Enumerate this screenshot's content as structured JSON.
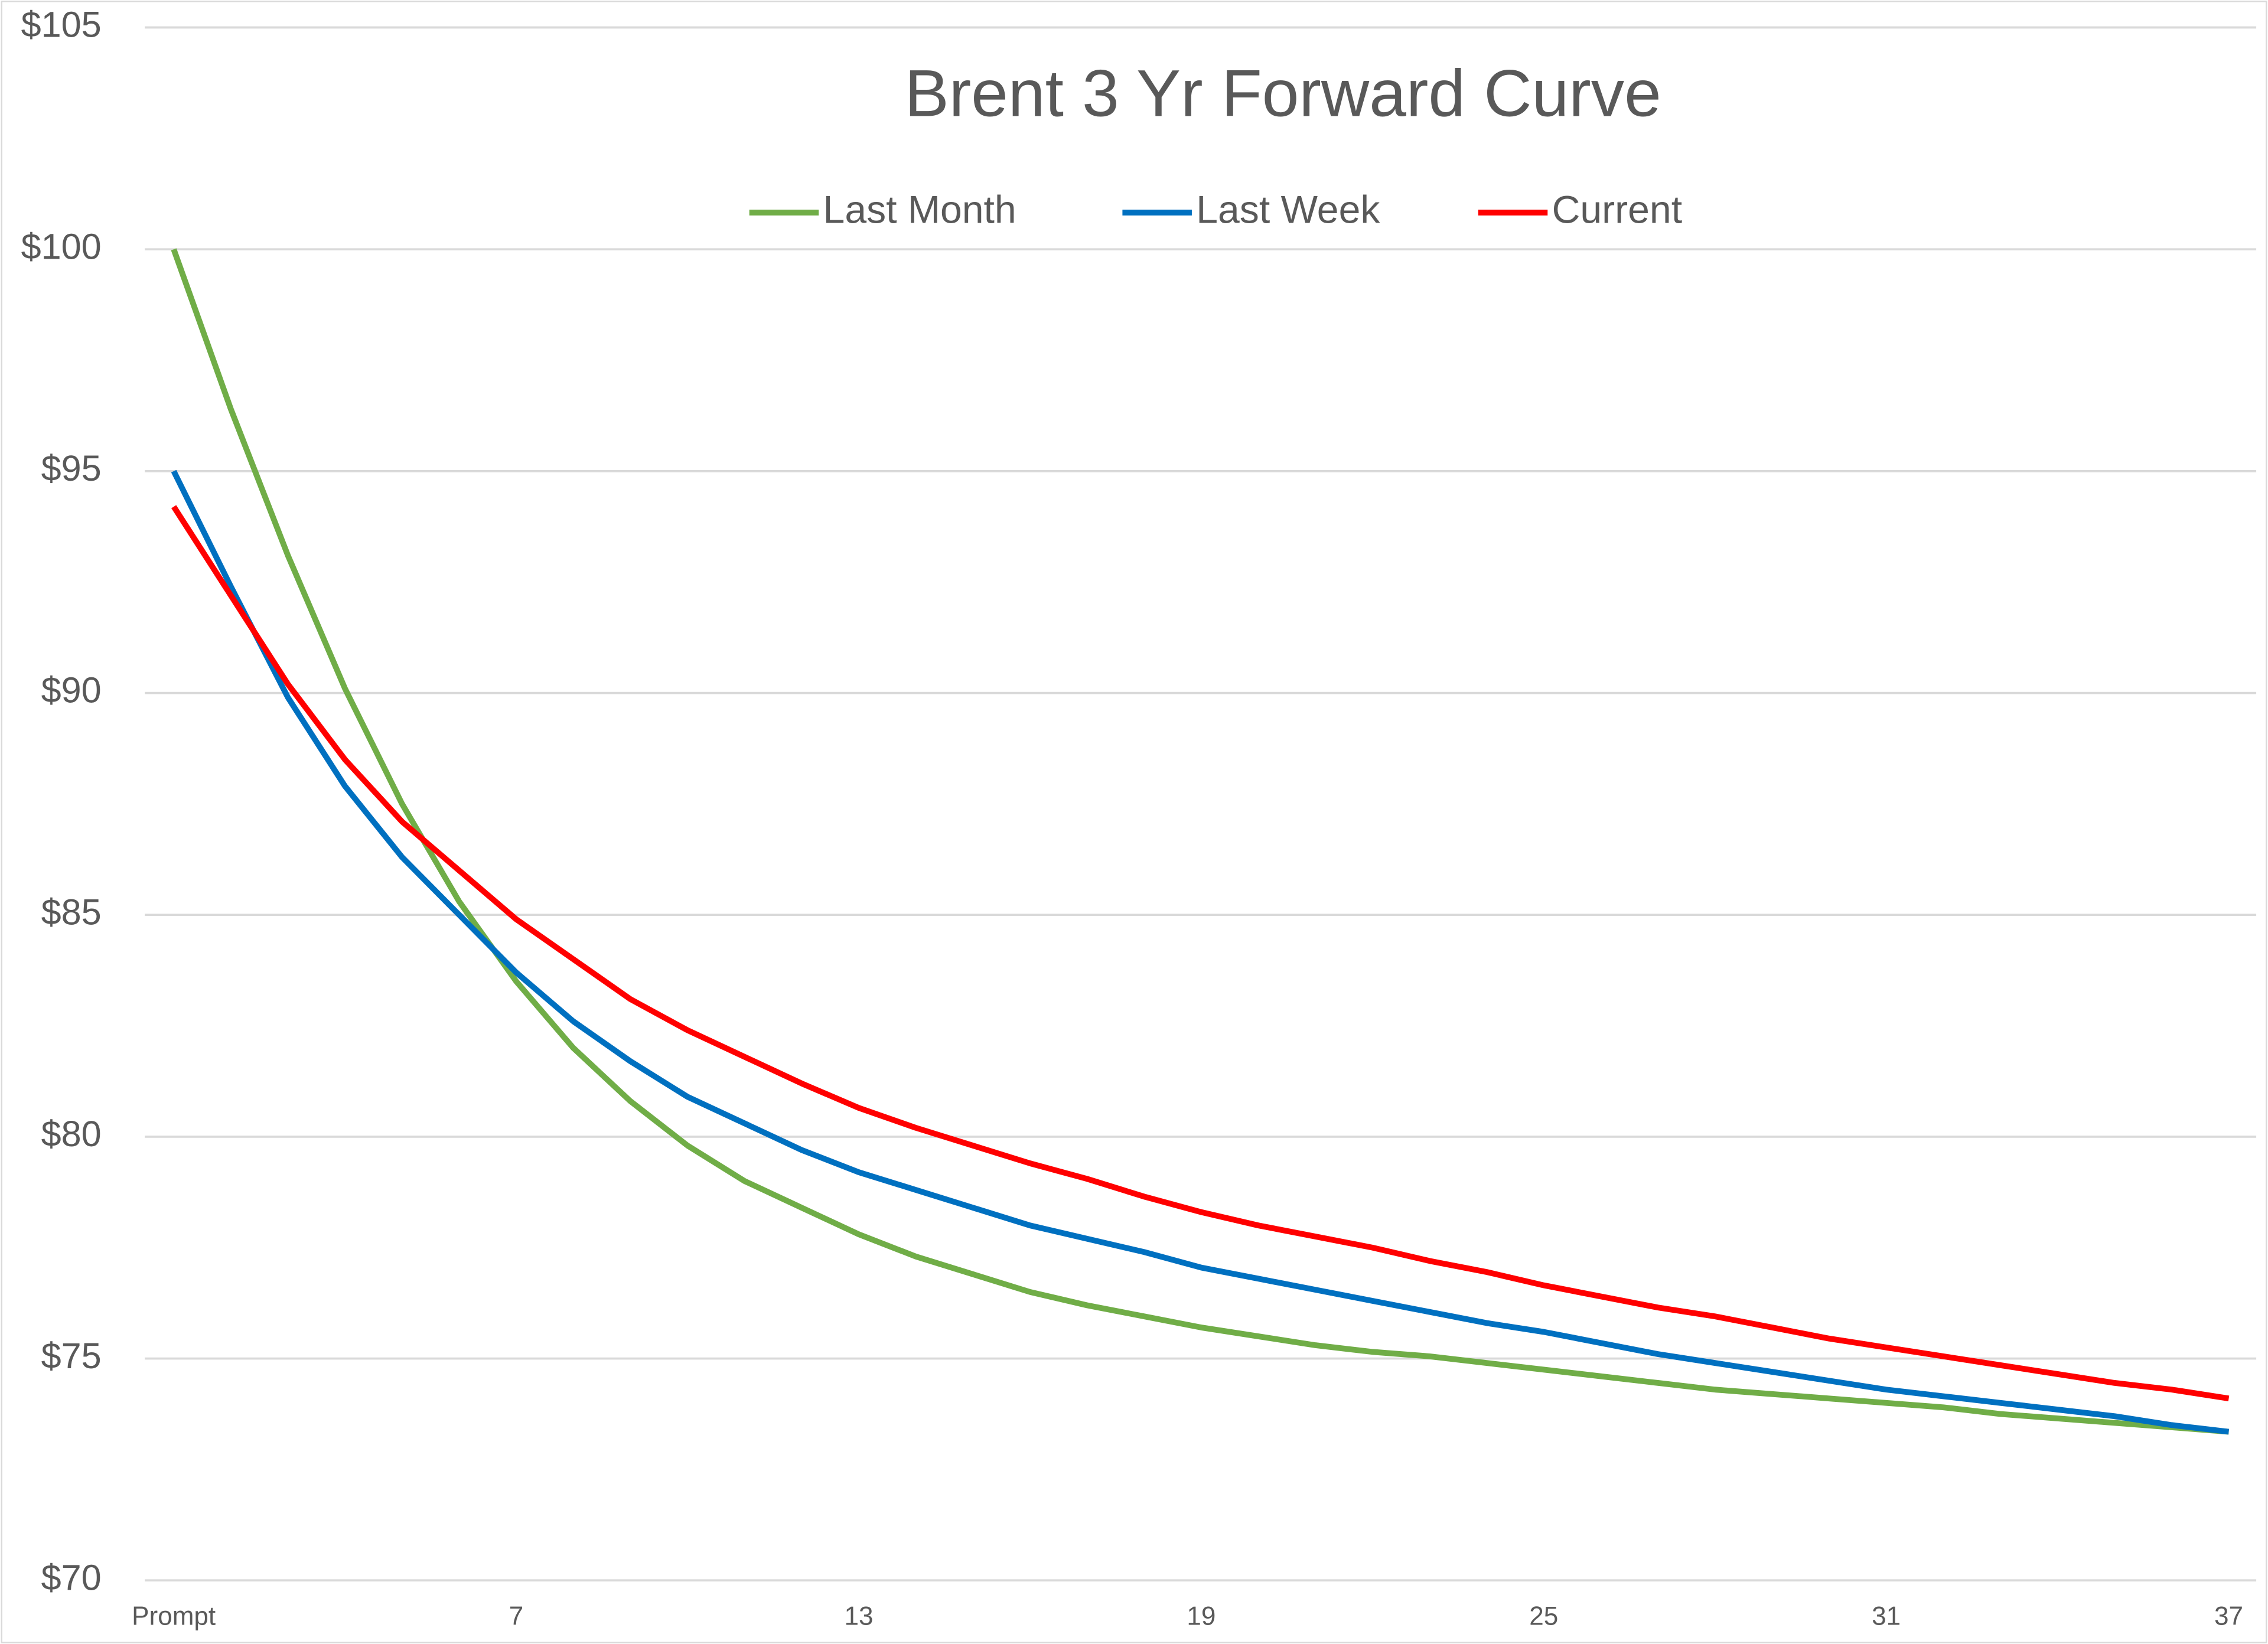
{
  "chart_data": {
    "type": "line",
    "title": "Brent 3 Yr Forward Curve",
    "categories": [
      "Prompt",
      null,
      null,
      null,
      null,
      null,
      "7",
      null,
      null,
      null,
      null,
      null,
      "13",
      null,
      null,
      null,
      null,
      null,
      "19",
      null,
      null,
      null,
      null,
      null,
      "25",
      null,
      null,
      null,
      null,
      null,
      "31",
      null,
      null,
      null,
      null,
      null,
      "37"
    ],
    "series": [
      {
        "name": "Last Month",
        "color": "#70ad47",
        "values": [
          100,
          96.4,
          93.1,
          90.1,
          87.5,
          85.3,
          83.5,
          82.0,
          80.8,
          79.8,
          79.0,
          78.4,
          77.8,
          77.3,
          76.9,
          76.5,
          76.2,
          75.95,
          75.7,
          75.5,
          75.3,
          75.15,
          75.05,
          74.9,
          74.75,
          74.6,
          74.45,
          74.3,
          74.2,
          74.1,
          74.0,
          73.9,
          73.75,
          73.65,
          73.55,
          73.45,
          73.35
        ]
      },
      {
        "name": "Last Week",
        "color": "#0070c0",
        "values": [
          95.0,
          92.4,
          89.9,
          87.9,
          86.3,
          85.0,
          83.7,
          82.6,
          81.7,
          80.9,
          80.3,
          79.7,
          79.2,
          78.8,
          78.4,
          78.0,
          77.7,
          77.4,
          77.05,
          76.8,
          76.55,
          76.3,
          76.05,
          75.8,
          75.6,
          75.35,
          75.1,
          74.9,
          74.7,
          74.5,
          74.3,
          74.15,
          74.0,
          73.85,
          73.7,
          73.5,
          73.35
        ]
      },
      {
        "name": "Current",
        "color": "#ff0000",
        "values": [
          94.2,
          92.2,
          90.2,
          88.5,
          87.1,
          86.0,
          84.9,
          84.0,
          83.1,
          82.4,
          81.8,
          81.2,
          80.65,
          80.2,
          79.8,
          79.4,
          79.05,
          78.65,
          78.3,
          78.0,
          77.75,
          77.5,
          77.2,
          76.95,
          76.65,
          76.4,
          76.15,
          75.95,
          75.7,
          75.45,
          75.25,
          75.05,
          74.85,
          74.65,
          74.45,
          74.3,
          74.1
        ]
      }
    ],
    "ylim": [
      70,
      105
    ],
    "yticks": [
      {
        "value": 70,
        "label": "$70"
      },
      {
        "value": 75,
        "label": "$75"
      },
      {
        "value": 80,
        "label": "$80"
      },
      {
        "value": 85,
        "label": "$85"
      },
      {
        "value": 90,
        "label": "$90"
      },
      {
        "value": 95,
        "label": "$95"
      },
      {
        "value": 100,
        "label": "$100"
      },
      {
        "value": 105,
        "label": "$105"
      }
    ],
    "grid": true,
    "legend": "top"
  }
}
